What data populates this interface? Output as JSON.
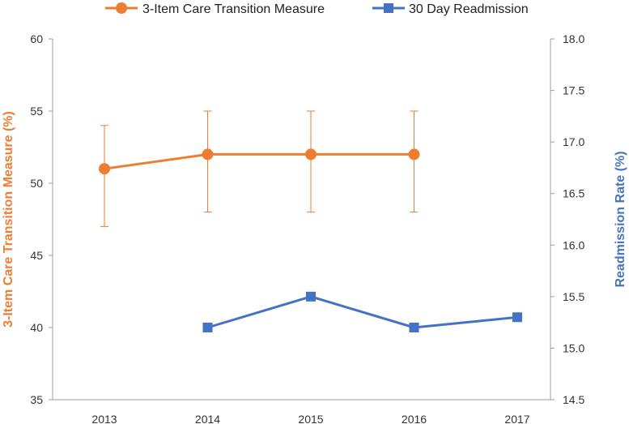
{
  "chart_data": {
    "type": "line",
    "title": "",
    "categories": [
      "2013",
      "2014",
      "2015",
      "2016",
      "2017"
    ],
    "xlabel": "",
    "ylabel": "3-Item Care Transition Measure (%)",
    "ylim": [
      35,
      60
    ],
    "yticks": [
      "35",
      "40",
      "45",
      "50",
      "55",
      "60"
    ],
    "y2label": "Readmission Rate (%)",
    "y2lim": [
      14.5,
      18.0
    ],
    "y2ticks": [
      "14.5",
      "15.0",
      "15.5",
      "16.0",
      "16.5",
      "17.0",
      "17.5",
      "18.0"
    ],
    "legend_position": "top",
    "grid": false,
    "series": [
      {
        "name": "3-Item Care Transition Measure",
        "axis": "left",
        "marker": "circle",
        "color": "#ED7D31",
        "values": [
          51,
          52,
          52,
          52,
          null
        ],
        "error_low": [
          47,
          48,
          48,
          48,
          null
        ],
        "error_high": [
          54,
          55,
          55,
          55,
          null
        ]
      },
      {
        "name": "30 Day Readmission",
        "axis": "right",
        "marker": "square",
        "color": "#4472C4",
        "values": [
          null,
          15.2,
          15.5,
          15.2,
          15.3
        ]
      }
    ]
  },
  "colors": {
    "left_axis_title": "#ED7D31",
    "right_axis_title": "#4472C4",
    "axis_line": "#9E9E9E"
  }
}
